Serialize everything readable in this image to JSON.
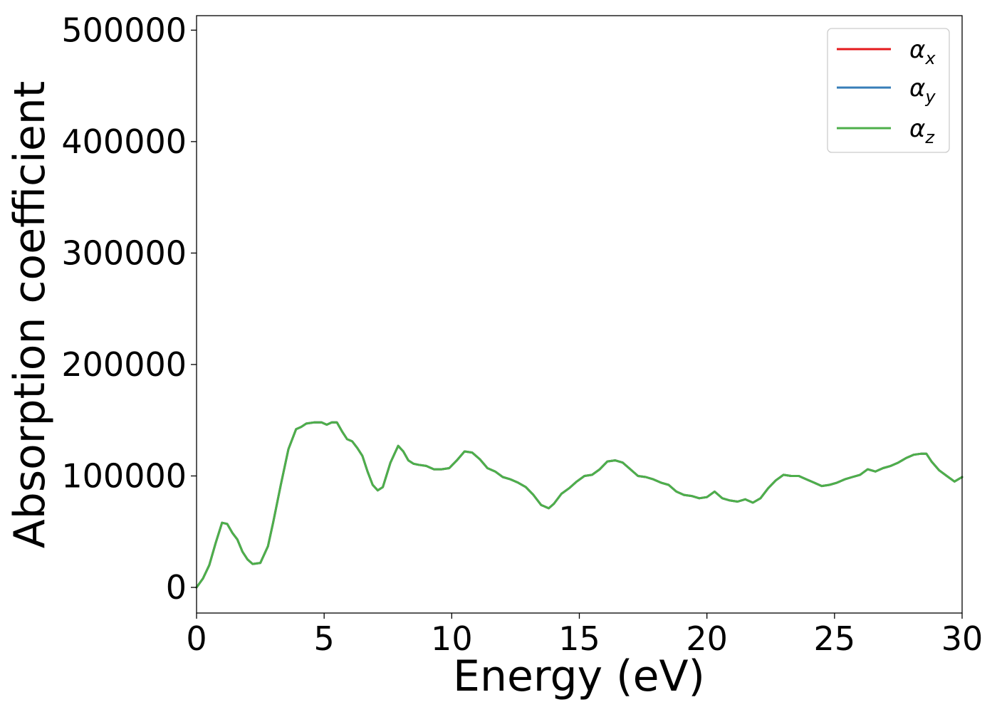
{
  "chart_data": {
    "type": "line",
    "title": "",
    "xlabel": "Energy (eV)",
    "ylabel": "Absorption coefficient",
    "xlim": [
      0,
      30
    ],
    "ylim": [
      -23000,
      513000
    ],
    "x_ticks": [
      0,
      5,
      10,
      15,
      20,
      25,
      30
    ],
    "x_tick_labels": [
      "0",
      "5",
      "10",
      "15",
      "20",
      "25",
      "30"
    ],
    "y_ticks": [
      0,
      100000,
      200000,
      300000,
      400000,
      500000
    ],
    "y_tick_labels": [
      "0",
      "100000",
      "200000",
      "300000",
      "400000",
      "500000"
    ],
    "grid": false,
    "legend_position": "top-right",
    "x": [
      0,
      0.25,
      0.5,
      0.75,
      1.0,
      1.2,
      1.4,
      1.6,
      1.8,
      2.0,
      2.2,
      2.5,
      2.8,
      3.0,
      3.3,
      3.6,
      3.9,
      4.1,
      4.3,
      4.6,
      4.9,
      5.1,
      5.3,
      5.5,
      5.7,
      5.9,
      6.1,
      6.3,
      6.5,
      6.7,
      6.9,
      7.1,
      7.3,
      7.6,
      7.9,
      8.1,
      8.3,
      8.5,
      8.7,
      9.0,
      9.3,
      9.6,
      9.9,
      10.2,
      10.5,
      10.8,
      11.1,
      11.4,
      11.7,
      12.0,
      12.3,
      12.6,
      12.9,
      13.2,
      13.5,
      13.8,
      14.0,
      14.3,
      14.6,
      14.9,
      15.2,
      15.5,
      15.8,
      16.1,
      16.4,
      16.7,
      17.0,
      17.3,
      17.6,
      17.9,
      18.2,
      18.5,
      18.8,
      19.1,
      19.4,
      19.7,
      20.0,
      20.3,
      20.6,
      20.9,
      21.2,
      21.5,
      21.8,
      22.1,
      22.4,
      22.7,
      23.0,
      23.3,
      23.6,
      23.9,
      24.2,
      24.5,
      24.8,
      25.1,
      25.4,
      25.7,
      26.0,
      26.3,
      26.6,
      26.9,
      27.2,
      27.5,
      27.8,
      28.1,
      28.4,
      28.6,
      28.8,
      29.1,
      29.4,
      29.7,
      30.0
    ],
    "series": [
      {
        "name": "αx",
        "color": "#e41a1c",
        "values": [
          0,
          8000,
          20000,
          40000,
          58000,
          57000,
          49000,
          43000,
          32000,
          25000,
          21000,
          22000,
          37000,
          58000,
          92000,
          124000,
          142000,
          144000,
          147000,
          148000,
          148000,
          146000,
          148000,
          148000,
          140000,
          133000,
          131000,
          125000,
          118000,
          104000,
          92000,
          87000,
          90000,
          112000,
          127000,
          122000,
          114000,
          111000,
          110000,
          109000,
          106000,
          106000,
          107000,
          114000,
          122000,
          121000,
          115000,
          107000,
          104000,
          99000,
          97000,
          94000,
          90000,
          83000,
          74000,
          71000,
          75000,
          84000,
          89000,
          95000,
          100000,
          101000,
          106000,
          113000,
          114000,
          112000,
          106000,
          100000,
          99000,
          97000,
          94000,
          92000,
          86000,
          83000,
          82000,
          80000,
          81000,
          86000,
          80000,
          78000,
          77000,
          79000,
          76000,
          80000,
          89000,
          96000,
          101000,
          100000,
          100000,
          97000,
          94000,
          91000,
          92000,
          94000,
          97000,
          99000,
          101000,
          106000,
          104000,
          107000,
          109000,
          112000,
          116000,
          119000,
          120000,
          120000,
          113000,
          105000,
          100000,
          95000,
          99000
        ]
      },
      {
        "name": "αy",
        "color": "#377eb8",
        "values": [
          0,
          8000,
          20000,
          40000,
          58000,
          57000,
          49000,
          43000,
          32000,
          25000,
          21000,
          22000,
          37000,
          58000,
          92000,
          124000,
          142000,
          144000,
          147000,
          148000,
          148000,
          146000,
          148000,
          148000,
          140000,
          133000,
          131000,
          125000,
          118000,
          104000,
          92000,
          87000,
          90000,
          112000,
          127000,
          122000,
          114000,
          111000,
          110000,
          109000,
          106000,
          106000,
          107000,
          114000,
          122000,
          121000,
          115000,
          107000,
          104000,
          99000,
          97000,
          94000,
          90000,
          83000,
          74000,
          71000,
          75000,
          84000,
          89000,
          95000,
          100000,
          101000,
          106000,
          113000,
          114000,
          112000,
          106000,
          100000,
          99000,
          97000,
          94000,
          92000,
          86000,
          83000,
          82000,
          80000,
          81000,
          86000,
          80000,
          78000,
          77000,
          79000,
          76000,
          80000,
          89000,
          96000,
          101000,
          100000,
          100000,
          97000,
          94000,
          91000,
          92000,
          94000,
          97000,
          99000,
          101000,
          106000,
          104000,
          107000,
          109000,
          112000,
          116000,
          119000,
          120000,
          120000,
          113000,
          105000,
          100000,
          95000,
          99000
        ]
      },
      {
        "name": "αz",
        "color": "#4daf4a",
        "values": [
          0,
          8000,
          20000,
          40000,
          58000,
          57000,
          49000,
          43000,
          32000,
          25000,
          21000,
          22000,
          37000,
          58000,
          92000,
          124000,
          142000,
          144000,
          147000,
          148000,
          148000,
          146000,
          148000,
          148000,
          140000,
          133000,
          131000,
          125000,
          118000,
          104000,
          92000,
          87000,
          90000,
          112000,
          127000,
          122000,
          114000,
          111000,
          110000,
          109000,
          106000,
          106000,
          107000,
          114000,
          122000,
          121000,
          115000,
          107000,
          104000,
          99000,
          97000,
          94000,
          90000,
          83000,
          74000,
          71000,
          75000,
          84000,
          89000,
          95000,
          100000,
          101000,
          106000,
          113000,
          114000,
          112000,
          106000,
          100000,
          99000,
          97000,
          94000,
          92000,
          86000,
          83000,
          82000,
          80000,
          81000,
          86000,
          80000,
          78000,
          77000,
          79000,
          76000,
          80000,
          89000,
          96000,
          101000,
          100000,
          100000,
          97000,
          94000,
          91000,
          92000,
          94000,
          97000,
          99000,
          101000,
          106000,
          104000,
          107000,
          109000,
          112000,
          116000,
          119000,
          120000,
          120000,
          113000,
          105000,
          100000,
          95000,
          99000
        ]
      }
    ],
    "legend": {
      "entries": [
        {
          "symbol": "α",
          "subscript": "x"
        },
        {
          "symbol": "α",
          "subscript": "y"
        },
        {
          "symbol": "α",
          "subscript": "z"
        }
      ]
    }
  }
}
